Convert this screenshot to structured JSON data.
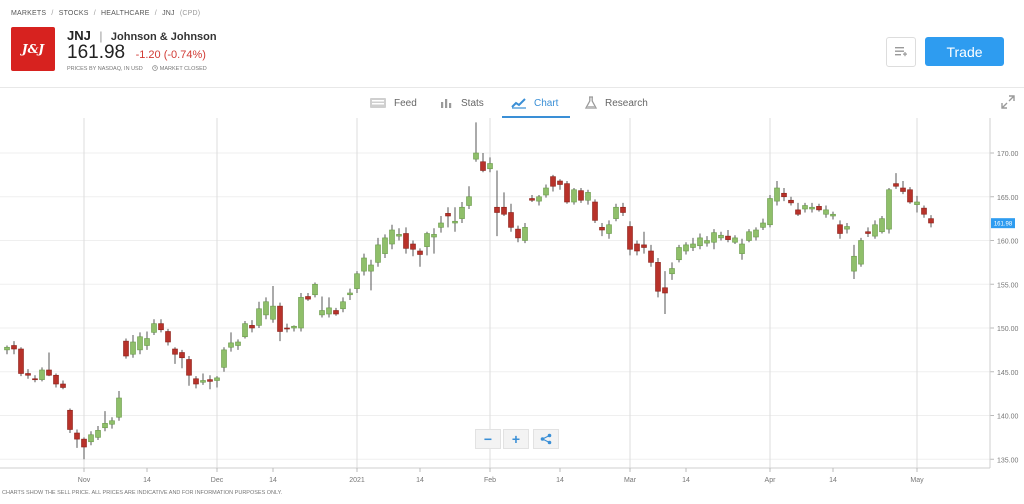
{
  "breadcrumb": {
    "items": [
      "MARKETS",
      "STOCKS",
      "HEALTHCARE",
      "JNJ"
    ],
    "code": "(CPD)",
    "separator": "/"
  },
  "instrument": {
    "logo_text": "J&J",
    "ticker": "JNJ",
    "separator": "|",
    "company": "Johnson & Johnson",
    "price": "161.98",
    "change": "-1.20 (-0.74%)",
    "price_note": "PRICES BY NASDAQ, IN USD",
    "market_status": "MARKET CLOSED"
  },
  "actions": {
    "watch_icon": "list-add-icon",
    "trade_label": "Trade"
  },
  "tabs": [
    {
      "label": "Feed",
      "icon": "newspaper-icon",
      "active": false
    },
    {
      "label": "Stats",
      "icon": "bar-chart-icon",
      "active": false
    },
    {
      "label": "Chart",
      "icon": "line-chart-icon",
      "active": true
    },
    {
      "label": "Research",
      "icon": "flask-icon",
      "active": false
    }
  ],
  "colors": {
    "accent": "#2e9cf0",
    "brand": "#d7221f",
    "up": "#8fbf6a",
    "down": "#b8322a",
    "change_negative": "#d13a34"
  },
  "controls": {
    "zoom_out": "−",
    "zoom_in": "+",
    "share_icon": "share-icon"
  },
  "disclaimer": "CHARTS SHOW THE SELL PRICE. ALL PRICES ARE INDICATIVE AND FOR INFORMATION PURPOSES ONLY.",
  "chart_data": {
    "type": "candlestick",
    "title": "",
    "y_range": [
      134,
      174
    ],
    "y_ticks": [
      135,
      140,
      145,
      150,
      155,
      160,
      165,
      170
    ],
    "y_tick_labels": [
      "135.00",
      "140.00",
      "145.00",
      "150.00",
      "155.00",
      "160.00",
      "165.00",
      "170.00"
    ],
    "current_price_label": "161.98",
    "current_price": 161.98,
    "x_labels": [
      {
        "label": "Nov",
        "index": 11
      },
      {
        "label": "14",
        "index": 20
      },
      {
        "label": "Dec",
        "index": 30
      },
      {
        "label": "14",
        "index": 38
      },
      {
        "label": "2021",
        "index": 50
      },
      {
        "label": "14",
        "index": 59
      },
      {
        "label": "Feb",
        "index": 69
      },
      {
        "label": "14",
        "index": 79
      },
      {
        "label": "Mar",
        "index": 89
      },
      {
        "label": "14",
        "index": 97
      },
      {
        "label": "Apr",
        "index": 109
      },
      {
        "label": "14",
        "index": 118
      },
      {
        "label": "May",
        "index": 130
      }
    ],
    "vertical_lines": [
      11,
      30,
      50,
      69,
      89,
      109,
      130
    ],
    "candles": [
      [
        147.5,
        148.0,
        147.0,
        147.8
      ],
      [
        148.0,
        148.5,
        147.0,
        147.6
      ],
      [
        147.6,
        147.8,
        144.5,
        144.8
      ],
      [
        144.8,
        145.3,
        144.2,
        144.6
      ],
      [
        144.2,
        144.6,
        143.8,
        144.1
      ],
      [
        144.1,
        145.5,
        143.9,
        145.2
      ],
      [
        145.2,
        147.2,
        144.5,
        144.6
      ],
      [
        144.6,
        144.8,
        143.2,
        143.6
      ],
      [
        143.6,
        144.0,
        143.0,
        143.2
      ],
      [
        140.6,
        140.8,
        138.0,
        138.4
      ],
      [
        138.0,
        138.4,
        136.3,
        137.3
      ],
      [
        137.3,
        137.5,
        135.0,
        136.4
      ],
      [
        137.0,
        138.2,
        136.6,
        137.8
      ],
      [
        137.5,
        138.8,
        137.2,
        138.3
      ],
      [
        138.6,
        140.5,
        138.2,
        139.1
      ],
      [
        139.0,
        139.8,
        138.5,
        139.4
      ],
      [
        139.8,
        142.8,
        139.4,
        142.0
      ],
      [
        148.5,
        148.8,
        146.5,
        146.8
      ],
      [
        147.0,
        149.2,
        146.6,
        148.4
      ],
      [
        147.5,
        149.5,
        147.0,
        149.0
      ],
      [
        148.0,
        149.6,
        147.5,
        148.8
      ],
      [
        149.5,
        151.0,
        149.2,
        150.5
      ],
      [
        150.5,
        151.0,
        149.5,
        149.8
      ],
      [
        149.6,
        149.9,
        148.0,
        148.4
      ],
      [
        147.6,
        147.8,
        145.9,
        147.0
      ],
      [
        147.2,
        147.5,
        145.4,
        146.6
      ],
      [
        146.4,
        146.8,
        143.4,
        144.6
      ],
      [
        144.2,
        144.5,
        143.1,
        143.6
      ],
      [
        143.8,
        144.8,
        143.5,
        144.0
      ],
      [
        144.1,
        144.6,
        143.0,
        143.9
      ],
      [
        144.0,
        144.5,
        143.2,
        144.3
      ],
      [
        145.5,
        147.8,
        145.0,
        147.5
      ],
      [
        147.8,
        149.5,
        147.3,
        148.3
      ],
      [
        148.0,
        148.7,
        147.5,
        148.4
      ],
      [
        149.0,
        150.8,
        148.8,
        150.5
      ],
      [
        150.3,
        150.9,
        149.5,
        150.0
      ],
      [
        150.3,
        153.0,
        150.0,
        152.2
      ],
      [
        151.5,
        153.5,
        151.0,
        153.0
      ],
      [
        151.0,
        154.8,
        150.6,
        152.5
      ],
      [
        152.5,
        152.9,
        148.5,
        149.6
      ],
      [
        150.0,
        150.5,
        149.5,
        149.9
      ],
      [
        150.0,
        150.3,
        149.6,
        150.2
      ],
      [
        150.0,
        154.0,
        149.6,
        153.5
      ],
      [
        153.6,
        154.0,
        153.1,
        153.3
      ],
      [
        153.8,
        155.2,
        153.5,
        155.0
      ],
      [
        151.5,
        153.6,
        151.2,
        152.0
      ],
      [
        151.6,
        153.5,
        151.2,
        152.3
      ],
      [
        152.0,
        152.3,
        151.4,
        151.6
      ],
      [
        152.2,
        153.5,
        151.8,
        153.0
      ],
      [
        153.8,
        154.5,
        153.2,
        154.0
      ],
      [
        154.5,
        156.5,
        154.0,
        156.2
      ],
      [
        156.5,
        158.5,
        156.0,
        158.0
      ],
      [
        156.5,
        157.8,
        154.3,
        157.2
      ],
      [
        157.5,
        160.3,
        157.0,
        159.5
      ],
      [
        158.5,
        160.7,
        158.0,
        160.3
      ],
      [
        159.6,
        161.8,
        159.0,
        161.2
      ],
      [
        160.5,
        161.4,
        160.0,
        160.7
      ],
      [
        160.8,
        161.5,
        158.5,
        159.1
      ],
      [
        159.6,
        160.0,
        158.2,
        159.0
      ],
      [
        158.8,
        159.1,
        157.0,
        158.4
      ],
      [
        159.3,
        161.0,
        158.3,
        160.8
      ],
      [
        160.4,
        161.4,
        158.5,
        160.7
      ],
      [
        161.5,
        162.8,
        160.9,
        162.0
      ],
      [
        163.1,
        163.8,
        161.5,
        162.8
      ],
      [
        162.0,
        163.8,
        161.0,
        162.2
      ],
      [
        162.5,
        164.4,
        162.0,
        163.8
      ],
      [
        164.0,
        166.2,
        163.6,
        165.0
      ],
      [
        169.3,
        173.5,
        169.0,
        170.0
      ],
      [
        169.0,
        170.0,
        167.8,
        168.0
      ],
      [
        168.2,
        169.5,
        167.8,
        168.8
      ],
      [
        163.8,
        168.0,
        160.5,
        163.2
      ],
      [
        163.8,
        165.5,
        162.8,
        163.0
      ],
      [
        163.2,
        164.2,
        161.0,
        161.5
      ],
      [
        161.3,
        161.7,
        159.8,
        160.3
      ],
      [
        160.0,
        162.0,
        159.7,
        161.5
      ],
      [
        164.8,
        165.2,
        164.4,
        164.6
      ],
      [
        164.5,
        165.2,
        164.0,
        165.0
      ],
      [
        165.2,
        166.4,
        164.9,
        166.0
      ],
      [
        167.3,
        167.5,
        165.6,
        166.2
      ],
      [
        166.8,
        167.0,
        165.8,
        166.4
      ],
      [
        166.5,
        166.8,
        164.2,
        164.4
      ],
      [
        164.4,
        166.0,
        164.1,
        165.8
      ],
      [
        165.7,
        166.0,
        164.3,
        164.6
      ],
      [
        164.6,
        165.8,
        164.1,
        165.5
      ],
      [
        164.4,
        164.7,
        162.0,
        162.3
      ],
      [
        161.5,
        162.0,
        160.5,
        161.2
      ],
      [
        160.8,
        162.3,
        160.2,
        161.8
      ],
      [
        162.5,
        164.2,
        162.2,
        163.8
      ],
      [
        163.8,
        164.3,
        162.8,
        163.2
      ],
      [
        161.6,
        162.2,
        158.3,
        159.0
      ],
      [
        159.6,
        160.0,
        158.3,
        158.8
      ],
      [
        159.5,
        161.0,
        158.5,
        159.2
      ],
      [
        158.8,
        159.5,
        157.0,
        157.5
      ],
      [
        157.5,
        158.0,
        153.5,
        154.2
      ],
      [
        154.6,
        156.5,
        151.6,
        154.0
      ],
      [
        156.2,
        157.5,
        155.5,
        156.8
      ],
      [
        157.8,
        159.5,
        157.5,
        159.2
      ],
      [
        158.8,
        159.8,
        158.4,
        159.5
      ],
      [
        159.2,
        160.3,
        158.8,
        159.6
      ],
      [
        159.4,
        160.8,
        159.0,
        160.3
      ],
      [
        159.7,
        160.5,
        159.3,
        160.0
      ],
      [
        159.8,
        161.3,
        159.0,
        160.9
      ],
      [
        160.3,
        161.0,
        160.0,
        160.6
      ],
      [
        160.5,
        161.2,
        159.8,
        160.1
      ],
      [
        159.8,
        160.6,
        159.6,
        160.3
      ],
      [
        158.5,
        160.2,
        157.8,
        159.6
      ],
      [
        160.0,
        161.3,
        159.8,
        161.0
      ],
      [
        160.4,
        161.5,
        160.0,
        161.2
      ],
      [
        161.5,
        162.5,
        161.2,
        162.0
      ],
      [
        161.8,
        165.2,
        161.5,
        164.8
      ],
      [
        164.5,
        166.8,
        164.0,
        166.0
      ],
      [
        165.4,
        166.0,
        164.5,
        165.0
      ],
      [
        164.6,
        165.0,
        164.0,
        164.3
      ],
      [
        163.5,
        164.3,
        162.8,
        163.0
      ],
      [
        163.6,
        164.3,
        163.2,
        164.0
      ],
      [
        163.6,
        164.3,
        163.2,
        163.8
      ],
      [
        163.9,
        164.2,
        163.3,
        163.5
      ],
      [
        163.0,
        164.0,
        162.6,
        163.5
      ],
      [
        162.8,
        163.3,
        162.4,
        163.0
      ],
      [
        161.8,
        162.3,
        160.2,
        160.8
      ],
      [
        161.3,
        162.0,
        160.8,
        161.6
      ],
      [
        156.5,
        159.5,
        155.6,
        158.2
      ],
      [
        157.3,
        160.3,
        157.0,
        160.0
      ],
      [
        161.0,
        161.5,
        160.4,
        160.8
      ],
      [
        160.5,
        162.3,
        160.2,
        161.8
      ],
      [
        161.0,
        162.8,
        160.8,
        162.5
      ],
      [
        161.3,
        166.0,
        160.8,
        165.8
      ],
      [
        166.5,
        167.7,
        165.9,
        166.2
      ],
      [
        166.0,
        166.8,
        165.3,
        165.6
      ],
      [
        165.8,
        166.1,
        164.2,
        164.4
      ],
      [
        164.1,
        165.1,
        163.2,
        164.4
      ],
      [
        163.7,
        164.0,
        162.6,
        163.0
      ],
      [
        162.5,
        162.9,
        161.5,
        162.0
      ]
    ]
  }
}
